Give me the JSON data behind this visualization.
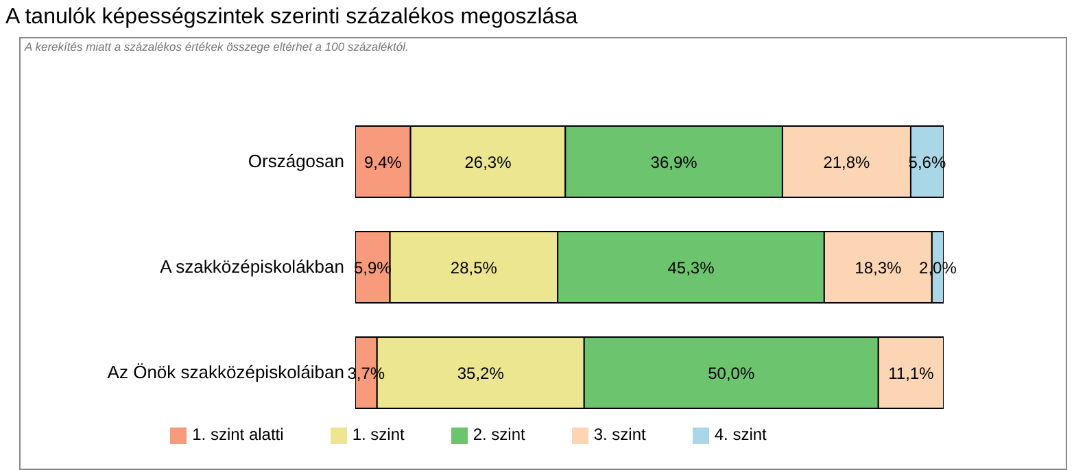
{
  "chart_data": {
    "type": "bar",
    "orientation": "horizontal",
    "stacked": true,
    "title": "A tanulók képességszintek szerinti százalékos megoszlása",
    "annotations": [
      "A kerekítés miatt a százalékos értékek összege eltérhet a 100 százaléktól."
    ],
    "categories": [
      "Országosan",
      "A szakközépiskolákban",
      "Az Önök szakközépiskoláiban"
    ],
    "series": [
      {
        "name": "1. szint alatti",
        "color": "#f79b7c",
        "values": [
          9.4,
          5.9,
          3.7
        ],
        "value_labels": [
          "9,4%",
          "5,9%",
          "3,7%"
        ]
      },
      {
        "name": "1. szint",
        "color": "#ebe68f",
        "values": [
          26.3,
          28.5,
          35.2
        ],
        "value_labels": [
          "26,3%",
          "28,5%",
          "35,2%"
        ]
      },
      {
        "name": "2. szint",
        "color": "#6cc46e",
        "values": [
          36.9,
          45.3,
          50.0
        ],
        "value_labels": [
          "36,9%",
          "45,3%",
          "50,0%"
        ]
      },
      {
        "name": "3. szint",
        "color": "#fcd5b5",
        "values": [
          21.8,
          18.3,
          11.1
        ],
        "value_labels": [
          "21,8%",
          "18,3%",
          "11,1%"
        ]
      },
      {
        "name": "4. szint",
        "color": "#a9d7e8",
        "values": [
          5.6,
          2.0,
          null
        ],
        "value_labels": [
          "5,6%",
          "2,0%",
          null
        ]
      }
    ],
    "legend": "bottom"
  }
}
